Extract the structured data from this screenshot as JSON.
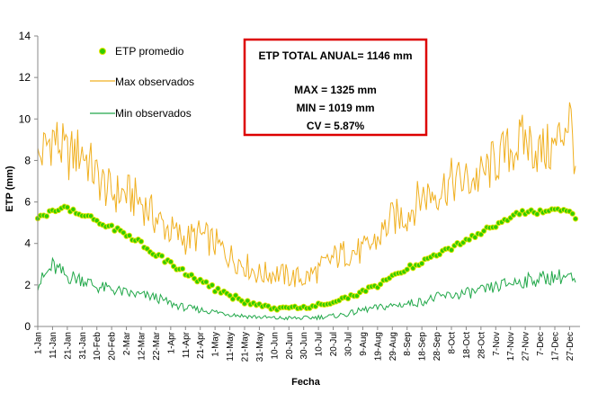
{
  "chart_data": {
    "type": "line",
    "title": "",
    "xlabel": "Fecha",
    "ylabel": "ETP (mm)",
    "ylim": [
      0,
      14
    ],
    "yticks": [
      "0",
      "2",
      "4",
      "6",
      "8",
      "10",
      "12",
      "14"
    ],
    "grid": false,
    "legend_position": "top-left",
    "categories": [
      "1-Jan",
      "11-Jan",
      "21-Jan",
      "31-Jan",
      "10-Feb",
      "20-Feb",
      "2-Mar",
      "12-Mar",
      "22-Mar",
      "1-Apr",
      "11-Apr",
      "21-Apr",
      "1-May",
      "11-May",
      "21-May",
      "31-May",
      "10-Jun",
      "20-Jun",
      "30-Jun",
      "10-Jul",
      "20-Jul",
      "30-Jul",
      "9-Aug",
      "19-Aug",
      "29-Aug",
      "8-Sep",
      "18-Sep",
      "28-Sep",
      "8-Oct",
      "18-Oct",
      "28-Oct",
      "7-Nov",
      "17-Nov",
      "27-Nov",
      "7-Dec",
      "17-Dec",
      "27-Dec"
    ],
    "x_day_of_year": [
      1,
      11,
      21,
      31,
      41,
      51,
      61,
      71,
      81,
      91,
      101,
      111,
      121,
      131,
      141,
      151,
      161,
      171,
      181,
      191,
      201,
      211,
      221,
      231,
      241,
      251,
      261,
      271,
      281,
      291,
      301,
      311,
      321,
      331,
      341,
      351,
      361
    ],
    "series": [
      {
        "name": "ETP promedio",
        "style": "markers",
        "color": "#33cc00",
        "edge_color": "#e6e600",
        "values": [
          5.3,
          5.5,
          5.7,
          5.4,
          5.1,
          4.8,
          4.4,
          4.0,
          3.5,
          3.0,
          2.6,
          2.2,
          1.8,
          1.5,
          1.2,
          1.0,
          0.9,
          0.85,
          0.9,
          1.0,
          1.2,
          1.4,
          1.7,
          2.0,
          2.4,
          2.8,
          3.1,
          3.5,
          3.8,
          4.2,
          4.5,
          4.9,
          5.3,
          5.5,
          5.5,
          5.6,
          5.6
        ]
      },
      {
        "name": "Max observados",
        "style": "line",
        "color": "#f0b020",
        "values": [
          8.0,
          9.2,
          8.2,
          8.5,
          7.2,
          6.4,
          6.4,
          6.0,
          5.2,
          4.6,
          4.2,
          4.4,
          4.0,
          3.4,
          3.0,
          2.5,
          2.6,
          2.4,
          2.3,
          2.7,
          3.3,
          3.6,
          3.6,
          4.2,
          5.2,
          5.4,
          6.3,
          6.5,
          7.0,
          7.0,
          7.2,
          8.0,
          8.5,
          9.0,
          8.4,
          8.6,
          10.2
        ]
      },
      {
        "name": "Min observados",
        "style": "line",
        "color": "#22a84a",
        "values": [
          2.0,
          2.9,
          2.4,
          2.3,
          1.9,
          1.8,
          1.6,
          1.5,
          1.4,
          1.1,
          0.9,
          0.8,
          0.7,
          0.6,
          0.5,
          0.45,
          0.4,
          0.4,
          0.4,
          0.45,
          0.5,
          0.6,
          0.8,
          0.9,
          1.0,
          1.1,
          1.2,
          1.4,
          1.5,
          1.6,
          1.7,
          1.9,
          2.1,
          2.2,
          2.3,
          2.4,
          2.4
        ]
      }
    ],
    "annotation": {
      "title": "ETP TOTAL ANUAL= 1146 mm",
      "lines": [
        "MAX = 1325 mm",
        "MIN = 1019 mm",
        "CV = 5.87%"
      ],
      "border_color": "#dd0000"
    }
  }
}
